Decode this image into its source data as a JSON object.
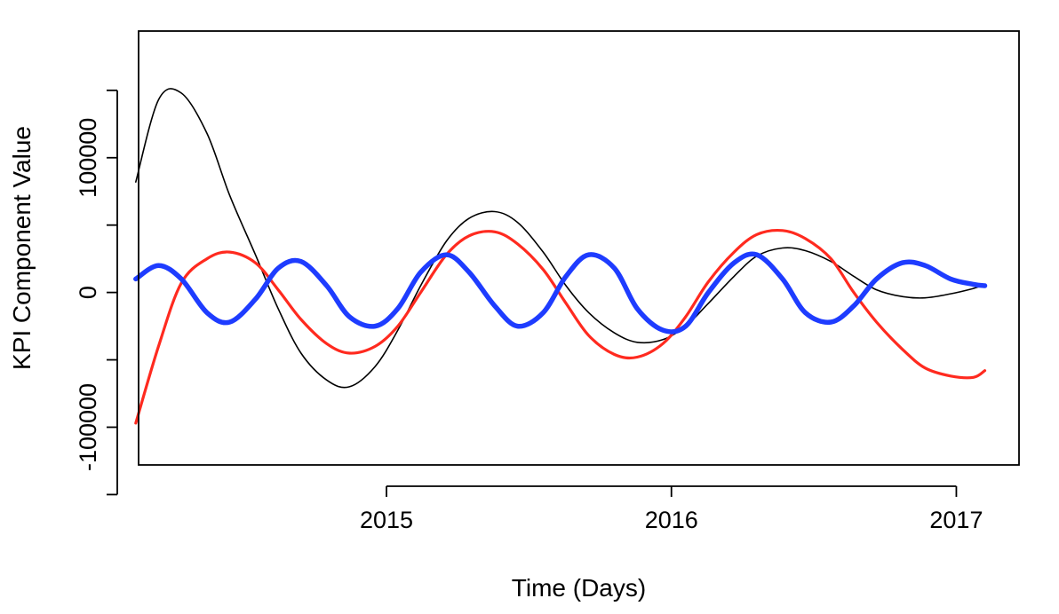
{
  "chart_data": {
    "type": "line",
    "title": "",
    "xlabel": "Time (Days)",
    "ylabel": "KPI Component Value",
    "xlim": [
      2014.13,
      2017.22
    ],
    "ylim": [
      -128000,
      194000
    ],
    "x_ticks": [
      {
        "value": 2015,
        "label": "2015"
      },
      {
        "value": 2016,
        "label": "2016"
      },
      {
        "value": 2017,
        "label": "2017"
      }
    ],
    "y_ticks": [
      {
        "value": -150000,
        "label": ""
      },
      {
        "value": -100000,
        "label": "-100000"
      },
      {
        "value": -50000,
        "label": ""
      },
      {
        "value": 0,
        "label": "0"
      },
      {
        "value": 50000,
        "label": ""
      },
      {
        "value": 100000,
        "label": "100000"
      },
      {
        "value": 150000,
        "label": ""
      }
    ],
    "grid": false,
    "legend": "none",
    "series": [
      {
        "color": "#000000",
        "width": 1.6,
        "x": [
          2014.12,
          2014.2,
          2014.28,
          2014.37,
          2014.45,
          2014.54,
          2014.62,
          2014.7,
          2014.79,
          2014.87,
          2014.96,
          2015.04,
          2015.12,
          2015.21,
          2015.29,
          2015.38,
          2015.46,
          2015.55,
          2015.63,
          2015.71,
          2015.8,
          2015.88,
          2015.97,
          2016.05,
          2016.13,
          2016.22,
          2016.3,
          2016.39,
          2016.47,
          2016.56,
          2016.64,
          2016.72,
          2016.81,
          2016.89,
          2016.98,
          2017.06,
          2017.1
        ],
        "values": [
          82000,
          143000,
          148000,
          118000,
          72000,
          28000,
          -12000,
          -45000,
          -65000,
          -70000,
          -55000,
          -28000,
          5000,
          38000,
          55000,
          60000,
          52000,
          30000,
          5000,
          -15000,
          -30000,
          -37000,
          -35000,
          -25000,
          -8000,
          12000,
          27000,
          33000,
          31000,
          23000,
          12000,
          2000,
          -3000,
          -4000,
          -1000,
          3000,
          6000
        ]
      },
      {
        "color": "#ff2a1f",
        "width": 3.2,
        "x": [
          2014.12,
          2014.2,
          2014.28,
          2014.37,
          2014.45,
          2014.54,
          2014.62,
          2014.7,
          2014.79,
          2014.87,
          2014.96,
          2015.04,
          2015.12,
          2015.21,
          2015.29,
          2015.38,
          2015.46,
          2015.55,
          2015.63,
          2015.71,
          2015.8,
          2015.88,
          2015.97,
          2016.05,
          2016.13,
          2016.22,
          2016.3,
          2016.39,
          2016.47,
          2016.56,
          2016.64,
          2016.72,
          2016.81,
          2016.89,
          2016.98,
          2017.06,
          2017.1
        ],
        "values": [
          -97000,
          -40000,
          7000,
          25000,
          30000,
          22000,
          2000,
          -20000,
          -38000,
          -45000,
          -40000,
          -25000,
          0,
          28000,
          42000,
          45000,
          36000,
          17000,
          -8000,
          -32000,
          -46000,
          -48000,
          -38000,
          -18000,
          8000,
          30000,
          43000,
          46000,
          40000,
          25000,
          0,
          -22000,
          -42000,
          -56000,
          -62000,
          -63000,
          -58000
        ]
      },
      {
        "color": "#1e3cff",
        "width": 5.5,
        "x": [
          2014.12,
          2014.2,
          2014.28,
          2014.37,
          2014.45,
          2014.54,
          2014.62,
          2014.7,
          2014.79,
          2014.87,
          2014.96,
          2015.04,
          2015.12,
          2015.21,
          2015.29,
          2015.38,
          2015.46,
          2015.55,
          2015.63,
          2015.71,
          2015.8,
          2015.88,
          2015.97,
          2016.05,
          2016.13,
          2016.22,
          2016.3,
          2016.39,
          2016.47,
          2016.56,
          2016.64,
          2016.72,
          2016.81,
          2016.89,
          2016.98,
          2017.06,
          2017.1
        ],
        "values": [
          10000,
          20000,
          10000,
          -15000,
          -22000,
          -5000,
          18000,
          23000,
          5000,
          -18000,
          -25000,
          -12000,
          15000,
          28000,
          15000,
          -10000,
          -25000,
          -15000,
          12000,
          28000,
          18000,
          -12000,
          -28000,
          -25000,
          0,
          22000,
          28000,
          10000,
          -15000,
          -22000,
          -10000,
          10000,
          22000,
          20000,
          10000,
          6000,
          5000
        ]
      }
    ]
  }
}
